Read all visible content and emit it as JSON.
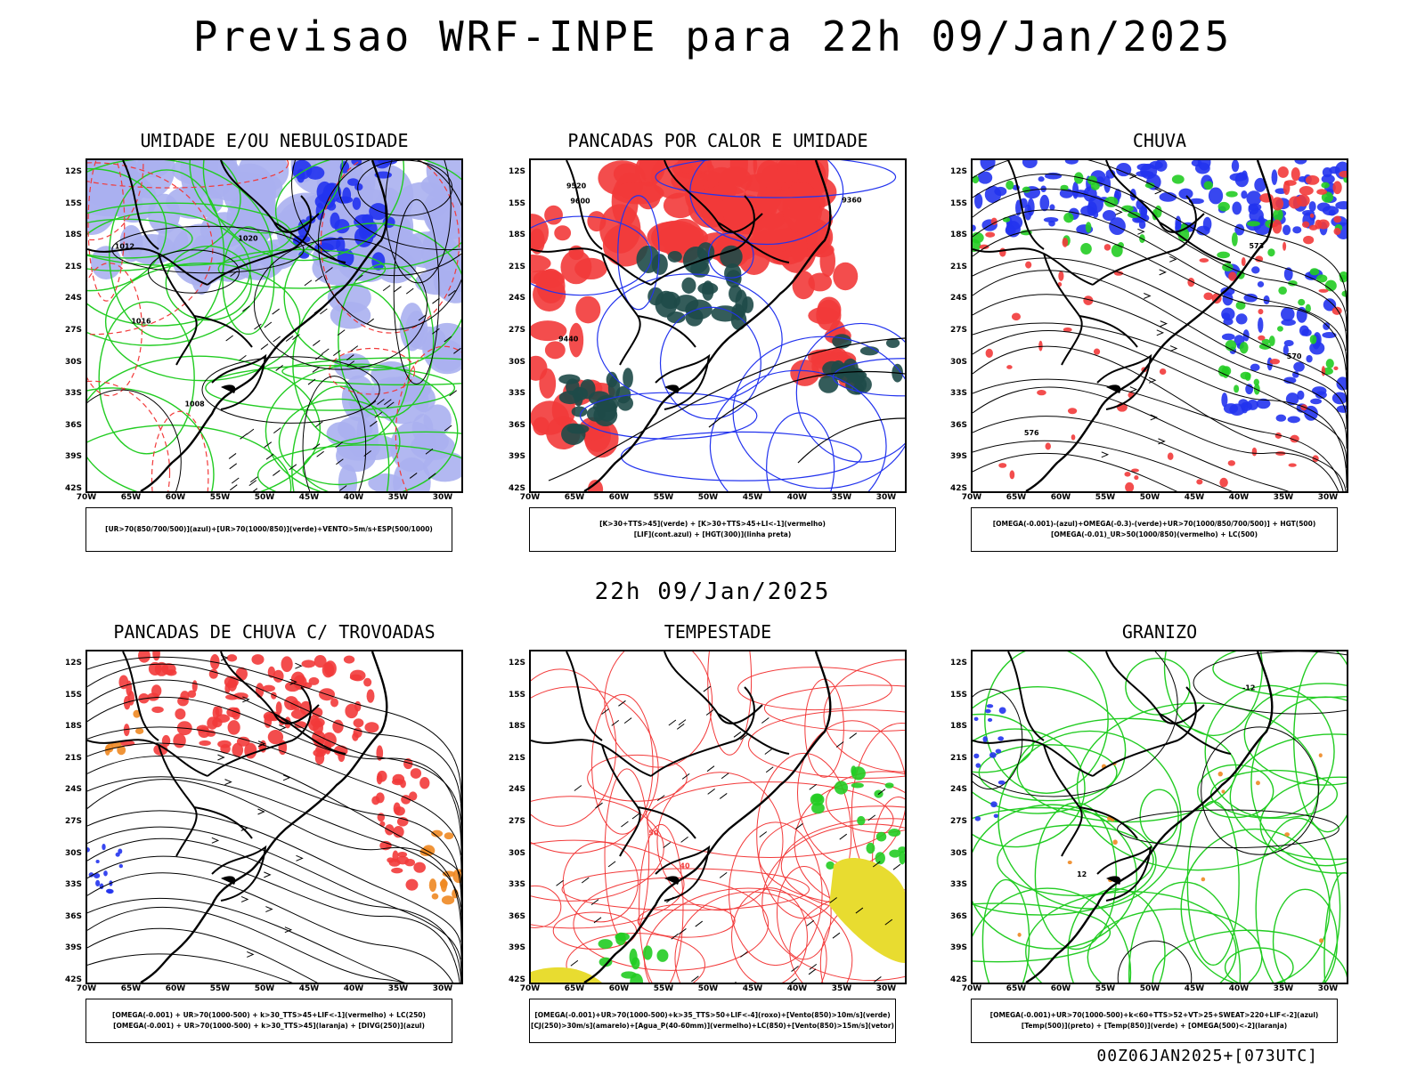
{
  "title": "Previsao WRF-INPE  para 22h 09/Jan/2025",
  "subtitle": "22h 09/Jan/2025",
  "footer": "00Z06JAN2025+[073UTC]",
  "lat_ticks": [
    "12S",
    "15S",
    "18S",
    "21S",
    "24S",
    "27S",
    "30S",
    "33S",
    "36S",
    "39S",
    "42S"
  ],
  "lon_ticks": [
    "70W",
    "65W",
    "60W",
    "55W",
    "50W",
    "45W",
    "40W",
    "35W",
    "30W"
  ],
  "panels": [
    {
      "title": "UMIDADE E/OU NEBULOSIDADE",
      "legend": [
        "[UR>70(850/700/500)](azul)+[UR>70(1000/850)](verde)+VENTO>5m/s+ESP(500/1000)"
      ],
      "labels": [
        "1012",
        "1008",
        "1016",
        "1020"
      ]
    },
    {
      "title": "PANCADAS POR CALOR E UMIDADE",
      "legend": [
        "[K>30+TTS>45](verde) + [K>30+TTS>45+LI<-1](vermelho)",
        "[LIF](cont.azul) + [HGT(300)](linha preta)"
      ],
      "labels": [
        "9600",
        "9520",
        "9440",
        "9360"
      ]
    },
    {
      "title": "CHUVA",
      "legend": [
        "[OMEGA(-0.001)-(azul)+OMEGA(-0.3)-(verde)+UR>70(1000/850/700/500)] + HGT(500)",
        "[OMEGA(-0.01)_UR>50(1000/850)(vermelho) + LC(500)"
      ],
      "labels": [
        "576",
        "573",
        "570"
      ]
    },
    {
      "title": "PANCADAS DE CHUVA C/ TROVOADAS",
      "legend": [
        "[OMEGA(-0.001) + UR>70(1000-500) + k>30_TTS>45+LIF<-1](vermelho) + LC(250)",
        "[OMEGA(-0.001) + UR>70(1000-500) + k>30_TTS>45](laranja) + [DIVG(250)](azul)"
      ],
      "labels": []
    },
    {
      "title": "TEMPESTADE",
      "legend": [
        "[OMEGA(-0.001)+UR>70(1000-500)+k>35_TTS>50+LIF<-4](roxo)+[Vento(850)>10m/s](verde)",
        "[CJ(250)>30m/s](amarelo)+[Agua_P(40-60mm)](vermelho)+LC(850)+[Vento(850)>15m/s](vetor)"
      ],
      "labels": [
        "40",
        "50"
      ]
    },
    {
      "title": "GRANIZO",
      "legend": [
        "[OMEGA(-0.001)+UR>70(1000-500)+k<60+TTS>52+VT>25+SWEAT>220+LIF<-2](azul)",
        "[Temp(500)](preto) + [Temp(850)](verde) + [OMEGA(500)<-2](laranja)"
      ],
      "labels": [
        "-12",
        "12"
      ]
    }
  ],
  "colors": {
    "red": "#f23a3a",
    "blue": "#2233ee",
    "green": "#22cc22",
    "lavender": "#aab0f0",
    "darkteal": "#1e4a48",
    "orange": "#ee8822",
    "yellow": "#e8dc30",
    "black": "#000000"
  }
}
